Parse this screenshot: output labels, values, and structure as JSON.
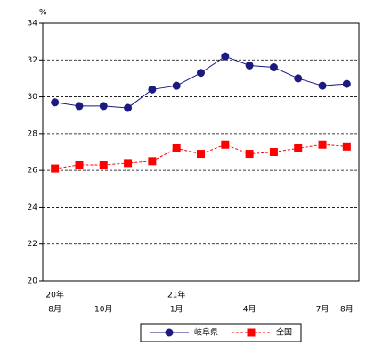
{
  "chart_data": {
    "type": "line",
    "unit_label": "%",
    "categories": [
      "8月",
      null,
      "10月",
      null,
      null,
      "1月",
      null,
      null,
      "4月",
      null,
      null,
      "7月",
      "8月"
    ],
    "year_labels": [
      "20年",
      null,
      null,
      null,
      null,
      "21年",
      null,
      null,
      null,
      null,
      null,
      null,
      null
    ],
    "series": [
      {
        "name": "岐阜県",
        "color": "#1a1a80",
        "marker": "circle",
        "dashed": false,
        "values": [
          29.7,
          29.5,
          29.5,
          29.4,
          30.4,
          30.6,
          31.3,
          32.2,
          31.7,
          31.6,
          31.0,
          30.6,
          30.7
        ]
      },
      {
        "name": "全国",
        "color": "#ff0000",
        "marker": "square",
        "dashed": true,
        "values": [
          26.1,
          26.3,
          26.3,
          26.4,
          26.5,
          27.2,
          26.9,
          27.4,
          26.9,
          27.0,
          27.2,
          27.4,
          27.3
        ]
      }
    ],
    "ylim": [
      20,
      34
    ],
    "yticks": [
      20,
      22,
      24,
      26,
      28,
      30,
      32,
      34
    ],
    "grid": true,
    "legend": "bottom"
  }
}
